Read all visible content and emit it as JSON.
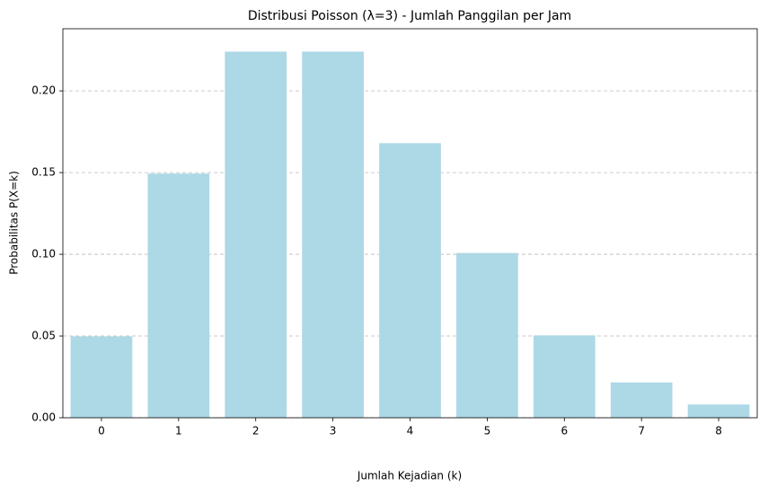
{
  "chart_data": {
    "type": "bar",
    "title": "Distribusi Poisson (λ=3) - Jumlah Panggilan per Jam",
    "x_label": "Jumlah Kejadian (k)",
    "y_label": "Probabilitas P(X=k)",
    "categories": [
      "0",
      "1",
      "2",
      "3",
      "4",
      "5",
      "6",
      "7",
      "8"
    ],
    "values": [
      0.0498,
      0.1494,
      0.224,
      0.224,
      0.168,
      0.1008,
      0.0504,
      0.0216,
      0.0081
    ],
    "color": "#add8e6",
    "ylim": [
      0,
      0.238
    ],
    "yticks": [
      {
        "value": 0,
        "label": "0.00"
      },
      {
        "value": 0.05,
        "label": "0.05"
      },
      {
        "value": 0.1,
        "label": "0.10"
      },
      {
        "value": 0.15,
        "label": "0.15"
      },
      {
        "value": 0.2,
        "label": "0.20"
      }
    ],
    "grid": true
  }
}
